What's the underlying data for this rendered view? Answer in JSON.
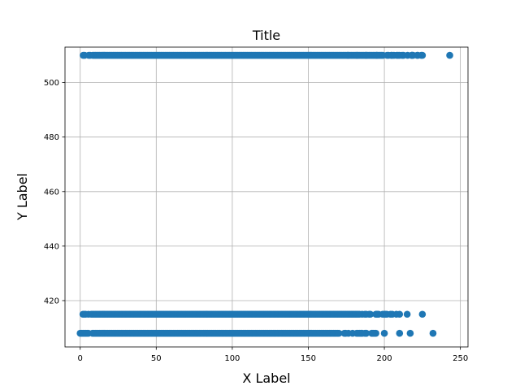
{
  "chart_data": {
    "type": "scatter",
    "title": "Title",
    "xlabel": "X Label",
    "ylabel": "Y Label",
    "xlim": [
      -10,
      255
    ],
    "ylim": [
      403,
      513
    ],
    "xticks": [
      0,
      50,
      100,
      150,
      200,
      250
    ],
    "yticks": [
      420,
      440,
      460,
      480,
      500
    ],
    "grid": true,
    "marker_color": "#1f77b4",
    "series": [
      {
        "y_levels": [
          510,
          415,
          408
        ],
        "points": [
          {
            "y": 510,
            "x_range": [
              2,
              225
            ],
            "isolated_x": [
              243,
              225,
              222,
              218,
              210,
              205,
              195,
              188,
              182,
              176
            ]
          },
          {
            "y": 415,
            "x_range": [
              0,
              208
            ],
            "isolated_x": [
              225,
              215,
              210,
              204,
              200,
              195,
              190
            ]
          },
          {
            "y": 408,
            "x_range": [
              0,
              196
            ],
            "isolated_x": [
              232,
              217,
              210,
              200,
              192,
              188,
              185
            ]
          }
        ]
      }
    ]
  }
}
